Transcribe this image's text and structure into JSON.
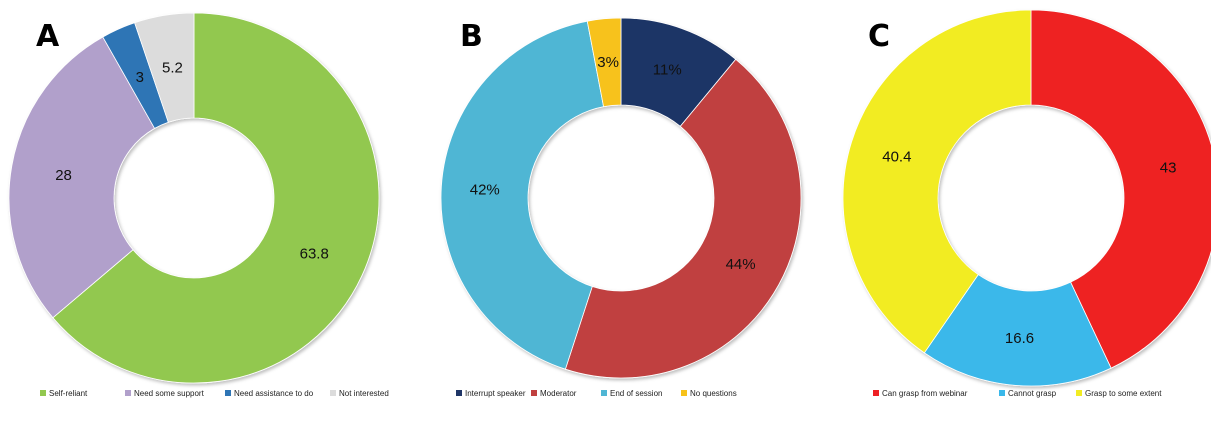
{
  "chart_data": [
    {
      "type": "pie",
      "panel": "A",
      "title": "",
      "categories": [
        "Self-reliant",
        "Need some support",
        "Need assistance to do",
        "Not interested"
      ],
      "values": [
        63.8,
        28,
        3,
        5.2
      ],
      "labels": [
        "63.8",
        "28",
        "3",
        "5.2"
      ],
      "colors": [
        "#92c84f",
        "#b1a0cb",
        "#2f75b5",
        "#dcdcdc"
      ],
      "legend": "bottom"
    },
    {
      "type": "pie",
      "panel": "B",
      "title": "",
      "categories": [
        "Interrupt speaker",
        "Moderator",
        "End of session",
        "No questions"
      ],
      "values": [
        11,
        44,
        42,
        3
      ],
      "labels": [
        "11%",
        "44%",
        "42%",
        "3%"
      ],
      "colors": [
        "#1f3566",
        "#c0403f",
        "#4fb6d4",
        "#f7c21a"
      ],
      "legend": "bottom"
    },
    {
      "type": "pie",
      "panel": "C",
      "title": "",
      "categories": [
        "Can grasp from webinar",
        "Cannot grasp",
        "Grasp to some extent"
      ],
      "values": [
        43,
        16.6,
        40.4
      ],
      "labels": [
        "43",
        "16.6",
        "40.4"
      ],
      "colors": [
        "#ee2024",
        "#3ab8ea",
        "#f2ec23"
      ],
      "legend": "bottom"
    }
  ]
}
